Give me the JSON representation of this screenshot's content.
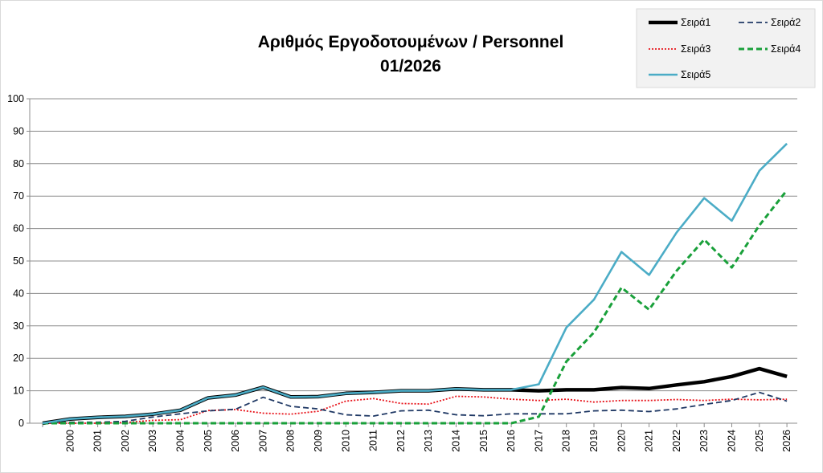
{
  "chart_data": {
    "type": "line",
    "title": [
      "Αριθμός Εργοδοτουμένων / Personnel",
      "01/2026"
    ],
    "xlabel": "",
    "ylabel": "",
    "ylim": [
      0,
      100
    ],
    "yticks": [
      0,
      10,
      20,
      30,
      40,
      50,
      60,
      70,
      80,
      90,
      100
    ],
    "grid": true,
    "legend_position": "top-right",
    "categories": [
      "",
      "2000",
      "2001",
      "2002",
      "2003",
      "2004",
      "2005",
      "2006",
      "2007",
      "2008",
      "2009",
      "2010",
      "2011",
      "2012",
      "2013",
      "2014",
      "2015",
      "2016",
      "2017",
      "2018",
      "2019",
      "2020",
      "2021",
      "2022",
      "2023",
      "2024",
      "2025",
      "2026"
    ],
    "series": [
      {
        "name": "Σειρά1",
        "color": "#000000",
        "style": "solid-thick",
        "values": [
          0,
          1.3,
          1.8,
          2.1,
          2.8,
          4.0,
          7.8,
          8.7,
          11.1,
          8.1,
          8.2,
          9.2,
          9.5,
          10.0,
          10.0,
          10.6,
          10.3,
          10.3,
          10.0,
          10.3,
          10.3,
          11.0,
          10.7,
          11.8,
          12.8,
          14.4,
          16.8,
          14.4
        ]
      },
      {
        "name": "Σειρά2",
        "color": "#1f3864",
        "style": "dashed",
        "values": [
          0,
          0.3,
          0.3,
          0.6,
          1.9,
          2.9,
          3.8,
          4.3,
          8.0,
          5.2,
          4.4,
          2.6,
          2.2,
          3.8,
          4.0,
          2.6,
          2.3,
          2.9,
          2.9,
          2.9,
          3.8,
          4.0,
          3.6,
          4.4,
          5.8,
          7.0,
          9.5,
          6.8
        ]
      },
      {
        "name": "Σειρά3",
        "color": "#e8141b",
        "style": "dotted",
        "values": [
          0,
          0.0,
          0.0,
          0.2,
          0.9,
          1.1,
          3.9,
          4.2,
          3.1,
          2.8,
          3.7,
          6.8,
          7.6,
          6.1,
          5.9,
          8.3,
          8.1,
          7.4,
          7.0,
          7.4,
          6.5,
          7.0,
          7.0,
          7.3,
          7.0,
          7.4,
          7.2,
          7.4
        ]
      },
      {
        "name": "Σειρά4",
        "color": "#19a03a",
        "style": "dashed-thick",
        "values": [
          0,
          0,
          0,
          0,
          0,
          0,
          0,
          0,
          0,
          0,
          0,
          0,
          0,
          0,
          0,
          0,
          0,
          0,
          2.0,
          19.0,
          28.0,
          41.8,
          35.0,
          47.0,
          56.6,
          48.0,
          61.0,
          71.8
        ]
      },
      {
        "name": "Σειρά5",
        "color": "#4bacc6",
        "style": "solid",
        "values": [
          0,
          1.3,
          1.8,
          2.1,
          2.8,
          4.0,
          7.8,
          8.7,
          11.1,
          8.1,
          8.2,
          9.2,
          9.5,
          10.0,
          10.0,
          10.6,
          10.3,
          10.3,
          12.0,
          29.5,
          38.1,
          52.8,
          45.7,
          58.8,
          69.4,
          62.4,
          77.8,
          86.2
        ]
      }
    ]
  }
}
